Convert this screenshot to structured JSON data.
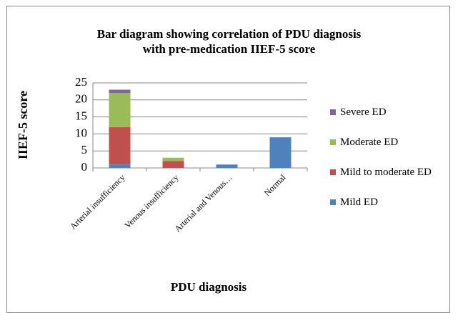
{
  "chart_data": {
    "type": "stacked-bar",
    "title": "Bar diagram showing  correlation of PDU diagnosis\nwith pre-medication  IIEF-5 score",
    "x_label": "PDU diagnosis",
    "y_label": "IIEF-5 score",
    "categories": [
      "Arterial insufficiency",
      "Venous insufficiency",
      "Arterial and Venous…",
      "Normal"
    ],
    "series": [
      {
        "name": "Mild ED",
        "color": "#4f81bd",
        "values": [
          1,
          0,
          1,
          9
        ]
      },
      {
        "name": "Mild to moderate ED",
        "color": "#c0504d",
        "values": [
          11,
          2,
          0,
          0
        ]
      },
      {
        "name": "Moderate ED",
        "color": "#9bbb59",
        "values": [
          10,
          1,
          0,
          0
        ]
      },
      {
        "name": "Severe ED",
        "color": "#8064a2",
        "values": [
          1,
          0,
          0,
          0
        ]
      }
    ],
    "ylim": [
      0,
      25
    ],
    "yticks": [
      0,
      5,
      10,
      15,
      20,
      25
    ],
    "grid": true,
    "legend": "right"
  }
}
